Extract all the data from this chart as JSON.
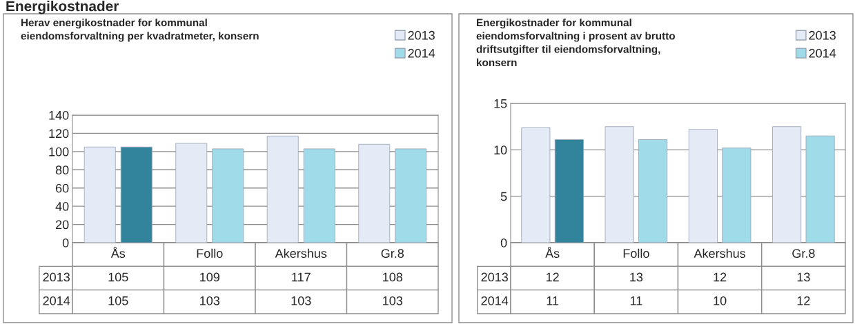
{
  "chart_data": [
    {
      "type": "bar",
      "title": "Herav energikostnader for kommunal\neiendomsforvaltning per kvadratmeter, konsern",
      "categories": [
        "Ås",
        "Follo",
        "Akershus",
        "Gr.8"
      ],
      "ylim": [
        0,
        140
      ],
      "yticks": [
        0,
        20,
        40,
        60,
        80,
        100,
        120,
        140
      ],
      "grid": "y",
      "legend": "top right",
      "series": [
        {
          "name": "2013",
          "color": "#e4ebf7",
          "values": [
            105,
            109,
            117,
            108
          ],
          "value_labels": [
            "105",
            "109",
            "117",
            "108"
          ]
        },
        {
          "name": "2014",
          "color": "#9fdbe8",
          "colors": [
            "#31849b",
            "#9fdbe8",
            "#9fdbe8",
            "#9fdbe8"
          ],
          "values": [
            105,
            103,
            103,
            103
          ],
          "value_labels": [
            "105",
            "103",
            "103",
            "103"
          ]
        }
      ],
      "annotations": [
        "Energikostnader"
      ]
    },
    {
      "type": "bar",
      "title": "Energikostnader for kommunal\neiendomsforvaltning i prosent av brutto\ndriftsutgifter til eiendomsforvaltning,\nkonsern",
      "categories": [
        "Ås",
        "Follo",
        "Akershus",
        "Gr.8"
      ],
      "ylim": [
        0,
        15
      ],
      "yticks": [
        0,
        5,
        10,
        15
      ],
      "grid": "y",
      "legend": "top right",
      "series": [
        {
          "name": "2013",
          "color": "#e4ebf7",
          "values": [
            12.4,
            12.5,
            12.2,
            12.5
          ],
          "value_labels": [
            "12",
            "13",
            "12",
            "13"
          ]
        },
        {
          "name": "2014",
          "color": "#9fdbe8",
          "colors": [
            "#31849b",
            "#9fdbe8",
            "#9fdbe8",
            "#9fdbe8"
          ],
          "values": [
            11.1,
            11.1,
            10.2,
            11.5
          ],
          "value_labels": [
            "11",
            "11",
            "10",
            "12"
          ]
        }
      ]
    }
  ]
}
